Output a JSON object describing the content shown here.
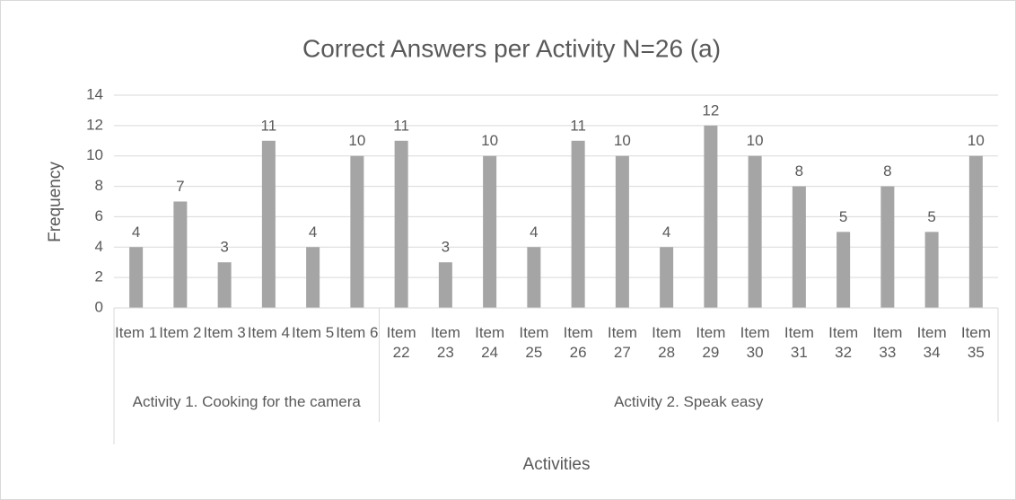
{
  "chart_data": {
    "type": "bar",
    "title": "Correct Answers per Activity N=26 (a)",
    "y_label": "Frequency",
    "x_label": "Activities",
    "color": "#a5a5a5",
    "grid": true,
    "ylim": [
      0,
      14
    ],
    "yticks": [
      0,
      2,
      4,
      6,
      8,
      10,
      12,
      14
    ],
    "groups": [
      {
        "name": "Activity 1. Cooking for the camera",
        "categories": [
          "Item 1",
          "Item 2",
          "Item 3",
          "Item 4",
          "Item 5",
          "Item 6"
        ],
        "values": [
          4,
          7,
          3,
          11,
          4,
          10
        ]
      },
      {
        "name": "Activity 2. Speak easy",
        "categories": [
          "Item 22",
          "Item 23",
          "Item 24",
          "Item 25",
          "Item 26",
          "Item 27",
          "Item 28",
          "Item 29",
          "Item 30",
          "Item 31",
          "Item 32",
          "Item 33",
          "Item 34",
          "Item 35"
        ],
        "values": [
          11,
          3,
          10,
          4,
          11,
          10,
          4,
          12,
          10,
          8,
          5,
          8,
          5,
          10
        ]
      }
    ]
  }
}
